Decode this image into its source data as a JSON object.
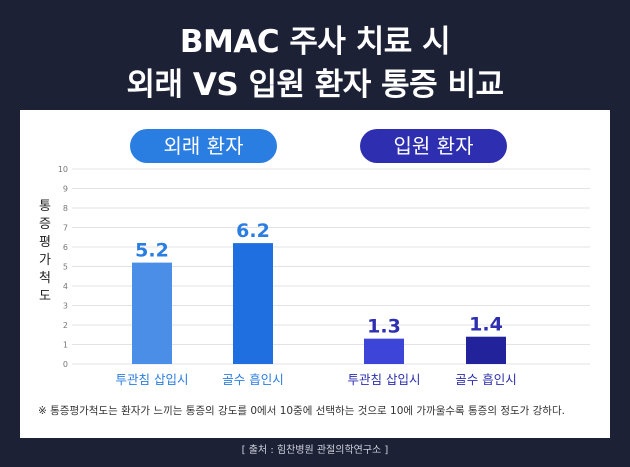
{
  "title_line1": "BMAC 주사 치료 시",
  "title_line2": "외래 VS 입원 환자 통증 비교",
  "groups": [
    "외래 환자",
    "입원 환자"
  ],
  "footnote": "※ 통증평가척도는 환자가 느끼는 통증의 강도를 0에서 10중에 선택하는 것으로 10에 가까울수록 통증의 정도가 강하다.",
  "source": "[ 출처 : 힘찬병원 관절의학연구소 ]",
  "chart_data": {
    "type": "bar",
    "ylabel": "통증평가척도",
    "ylim": [
      0,
      10
    ],
    "yticks": [
      "0",
      "1",
      "2",
      "3",
      "4",
      "5",
      "6",
      "7",
      "8",
      "9",
      "10"
    ],
    "grid": true,
    "categories": [
      "투관침 삽입시",
      "골수 흡인시",
      "투관침 삽입시",
      "골수 흡인시"
    ],
    "values": [
      5.2,
      6.2,
      1.3,
      1.4
    ],
    "value_labels": [
      "5.2",
      "6.2",
      "1.3",
      "1.4"
    ],
    "bar_colors": [
      "#4a8ee8",
      "#1f6fe0",
      "#3d44d8",
      "#22239a"
    ],
    "label_colors": [
      "#2a7de1",
      "#2a7de1",
      "#2d2fb0",
      "#2d2fb0"
    ]
  }
}
